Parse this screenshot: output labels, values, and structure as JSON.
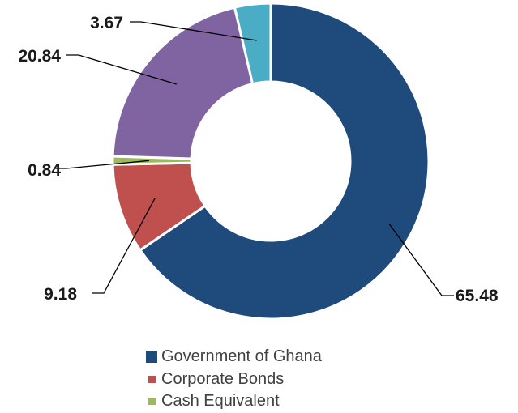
{
  "chart_data": {
    "type": "pie",
    "variant": "donut",
    "slices": [
      {
        "label": "",
        "value": 65.48,
        "color": "#1f4a7c"
      },
      {
        "label": "",
        "value": 9.18,
        "color": "#c0504d"
      },
      {
        "label": "",
        "value": 0.84,
        "color": "#9bbb59"
      },
      {
        "label": "",
        "value": 20.84,
        "color": "#8064a2"
      },
      {
        "label": "",
        "value": 3.67,
        "color": "#4bacc6"
      }
    ],
    "data_labels": [
      "65.48",
      "9.18",
      "0.84",
      "20.84",
      "3.67"
    ],
    "legend": [
      {
        "name": "Government of Ghana",
        "color": "#1f4a7c"
      },
      {
        "name": "Corporate Bonds",
        "color": "#c0504d"
      },
      {
        "name": "Cash Equivalent",
        "color": "#9bbb59"
      }
    ],
    "legend_position": "bottom",
    "title": ""
  }
}
